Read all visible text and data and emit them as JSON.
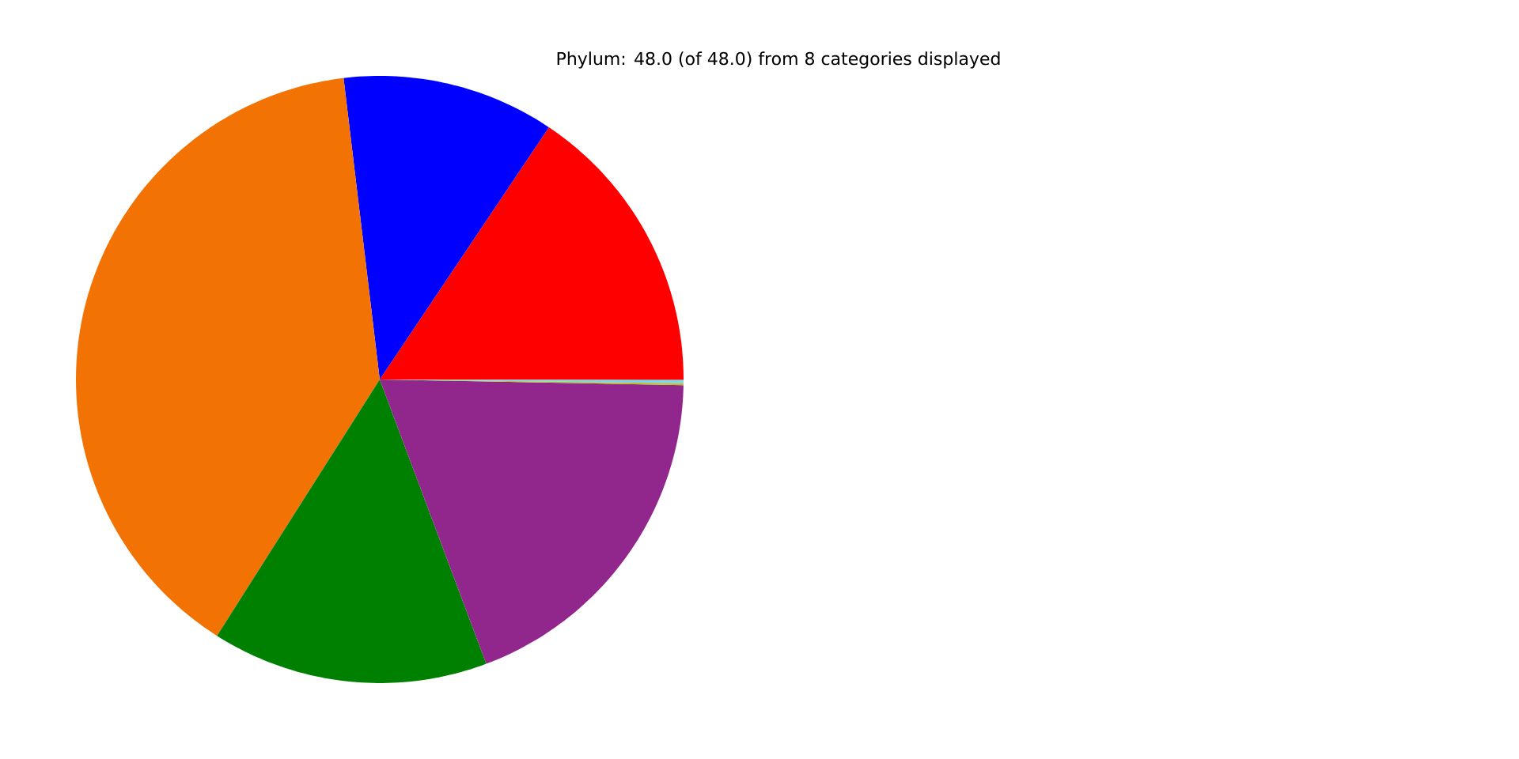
{
  "chart_data": {
    "type": "pie",
    "title": "Phylum: 48.0 (of 48.0) from 8 categories displayed",
    "categories": [
      null,
      null,
      null,
      null,
      null,
      null,
      null,
      null
    ],
    "values": [
      15.6,
      11.3,
      39.1,
      14.7,
      19.0,
      0.1,
      0.15,
      0.05
    ],
    "colors": [
      "#ff0000",
      "#0000ff",
      "#f27304",
      "#008000",
      "#91278d",
      "#bcbd22",
      "#7fd3e6",
      "#a0a0a0"
    ]
  }
}
